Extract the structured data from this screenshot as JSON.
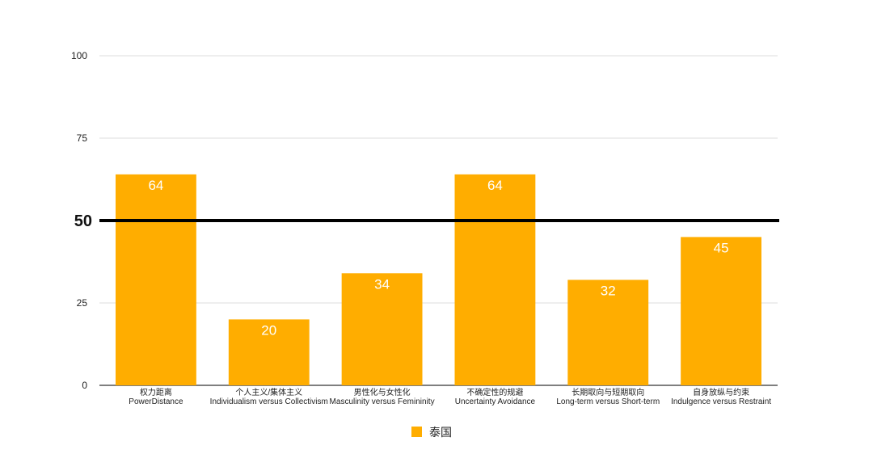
{
  "chart_data": {
    "type": "bar",
    "categories": [
      {
        "cn": "权力距离",
        "en": "PowerDistance"
      },
      {
        "cn": "个人主义/集体主义",
        "en": "Individualism versus Collectivism"
      },
      {
        "cn": "男性化与女性化",
        "en": "Masculinity versus Femininity"
      },
      {
        "cn": "不确定性的规避",
        "en": "Uncertainty Avoidance"
      },
      {
        "cn": "长期取向与短期取向",
        "en": "Long-term versus Short-term"
      },
      {
        "cn": "自身放纵与约束",
        "en": "Indulgence versus Restraint"
      }
    ],
    "series": [
      {
        "name": "泰国",
        "values": [
          64,
          20,
          34,
          64,
          32,
          45
        ],
        "color": "#FFAD00"
      }
    ],
    "ylim": [
      0,
      100
    ],
    "yticks": [
      "0",
      "25",
      "50",
      "75",
      "100"
    ],
    "reference_line": {
      "value": 50,
      "label": "50",
      "color": "#000000"
    },
    "grid": true,
    "legend_position": "bottom",
    "data_labels": true
  }
}
